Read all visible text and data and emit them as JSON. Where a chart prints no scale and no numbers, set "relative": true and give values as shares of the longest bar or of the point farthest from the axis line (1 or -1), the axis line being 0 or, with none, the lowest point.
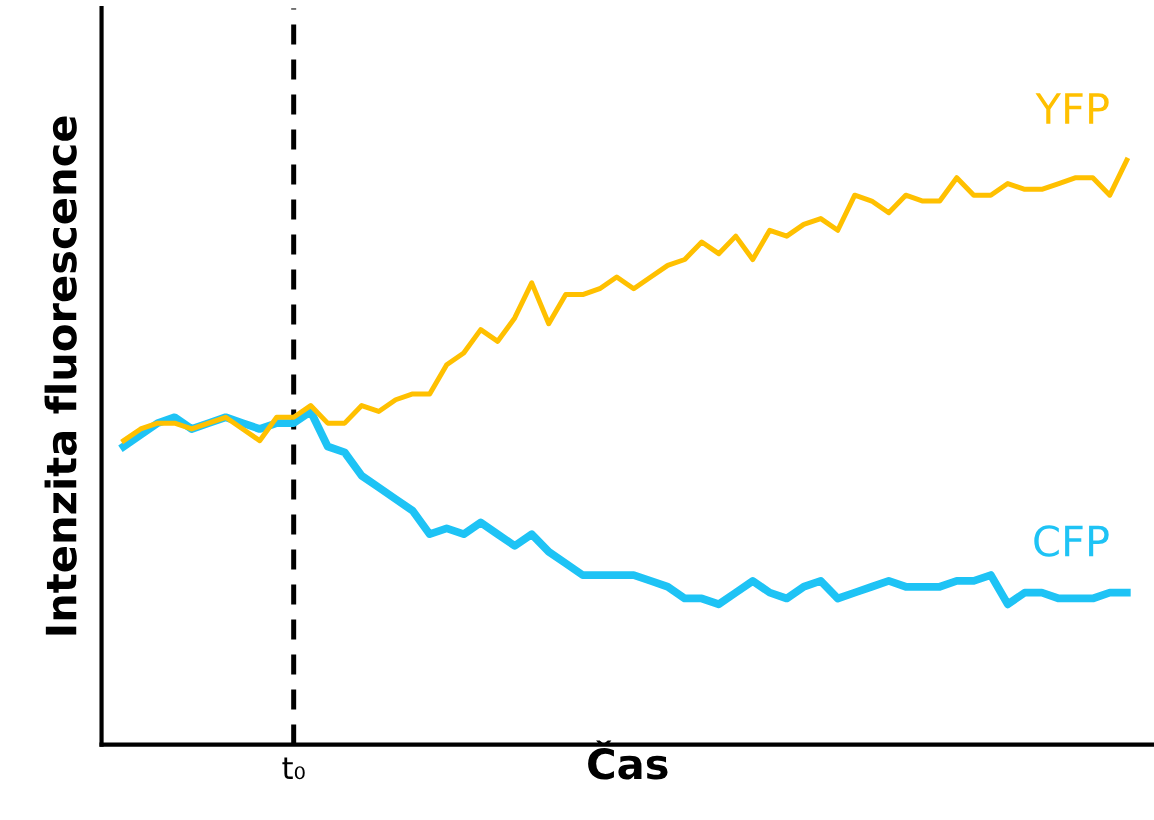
{
  "chart_data": {
    "type": "line",
    "relative": true,
    "xlabel": "Čas",
    "ylabel": "Intenzita fluorescence",
    "categories": [
      null,
      null,
      null,
      null,
      null,
      null,
      null,
      null,
      null,
      null,
      null,
      null,
      null,
      null,
      null,
      null,
      null,
      null,
      null,
      null,
      null,
      null,
      null,
      null,
      null,
      null,
      null,
      null,
      null,
      null,
      null,
      null,
      null,
      null,
      null,
      null,
      null,
      null,
      null,
      null,
      null,
      null,
      null,
      null,
      null,
      null,
      null,
      null,
      null,
      null,
      null,
      null,
      null,
      null,
      null,
      null,
      null,
      null,
      null,
      null
    ],
    "tick_labels": false,
    "legend": false,
    "marker": "none",
    "line_style": "solid",
    "annotations": [
      "t₀"
    ],
    "series": [
      {
        "name": "YFP",
        "color": "#ffc000",
        "values": [
          0.52,
          0.54,
          0.55,
          0.55,
          0.54,
          0.55,
          0.56,
          0.54,
          0.52,
          0.56,
          0.56,
          0.58,
          0.55,
          0.55,
          0.58,
          0.57,
          0.59,
          0.6,
          0.6,
          0.65,
          0.67,
          0.71,
          0.69,
          0.73,
          0.79,
          0.72,
          0.77,
          0.77,
          0.78,
          0.8,
          0.78,
          0.8,
          0.82,
          0.83,
          0.86,
          0.84,
          0.87,
          0.83,
          0.88,
          0.87,
          0.89,
          0.9,
          0.88,
          0.94,
          0.93,
          0.91,
          0.94,
          0.93,
          0.93,
          0.97,
          0.94,
          0.94,
          0.96,
          0.95,
          0.95,
          0.96,
          0.97,
          0.97,
          0.94,
          1.0
        ]
      },
      {
        "name": "CFP",
        "color": "#1ec3f5",
        "values": [
          0.51,
          0.53,
          0.55,
          0.56,
          0.54,
          0.55,
          0.56,
          0.55,
          0.54,
          0.55,
          0.55,
          0.57,
          0.51,
          0.5,
          0.46,
          0.44,
          0.42,
          0.4,
          0.36,
          0.37,
          0.36,
          0.38,
          0.36,
          0.34,
          0.36,
          0.33,
          0.31,
          0.29,
          0.29,
          0.29,
          0.29,
          0.28,
          0.27,
          0.25,
          0.25,
          0.24,
          0.26,
          0.28,
          0.26,
          0.25,
          0.27,
          0.28,
          0.25,
          0.26,
          0.27,
          0.28,
          0.27,
          0.27,
          0.27,
          0.28,
          0.28,
          0.29,
          0.24,
          0.26,
          0.26,
          0.25,
          0.25,
          0.25,
          0.26,
          0.26
        ]
      }
    ]
  }
}
